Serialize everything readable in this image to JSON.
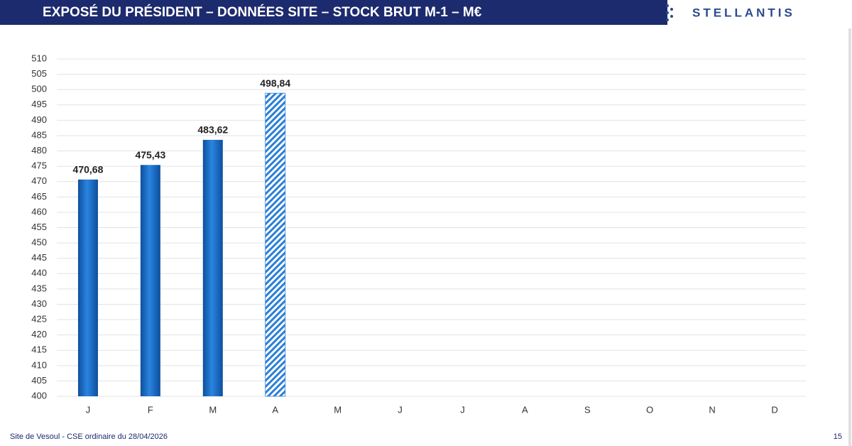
{
  "header": {
    "title": "EXPOSÉ DU PRÉSIDENT – DONNÉES SITE – STOCK BRUT M-1 – M€",
    "logo": "STELLANTIS"
  },
  "chart_data": {
    "type": "bar",
    "categories": [
      "J",
      "F",
      "M",
      "A",
      "M",
      "J",
      "J",
      "A",
      "S",
      "O",
      "N",
      "D"
    ],
    "values": [
      470.68,
      475.43,
      483.62,
      498.84,
      null,
      null,
      null,
      null,
      null,
      null,
      null,
      null
    ],
    "value_labels": [
      "470,68",
      "475,43",
      "483,62",
      "498,84",
      null,
      null,
      null,
      null,
      null,
      null,
      null,
      null
    ],
    "point_styles": [
      "solid",
      "solid",
      "solid",
      "hatched",
      null,
      null,
      null,
      null,
      null,
      null,
      null,
      null
    ],
    "color": "#1a6cc4",
    "ylim": [
      400,
      510
    ],
    "yticks": [
      400,
      405,
      410,
      415,
      420,
      425,
      430,
      435,
      440,
      445,
      450,
      455,
      460,
      465,
      470,
      475,
      480,
      485,
      490,
      495,
      500,
      505,
      510
    ],
    "grid": true
  },
  "footer": {
    "text": "Site de Vesoul - CSE ordinaire du 28/04/2026",
    "page_number": 15
  }
}
